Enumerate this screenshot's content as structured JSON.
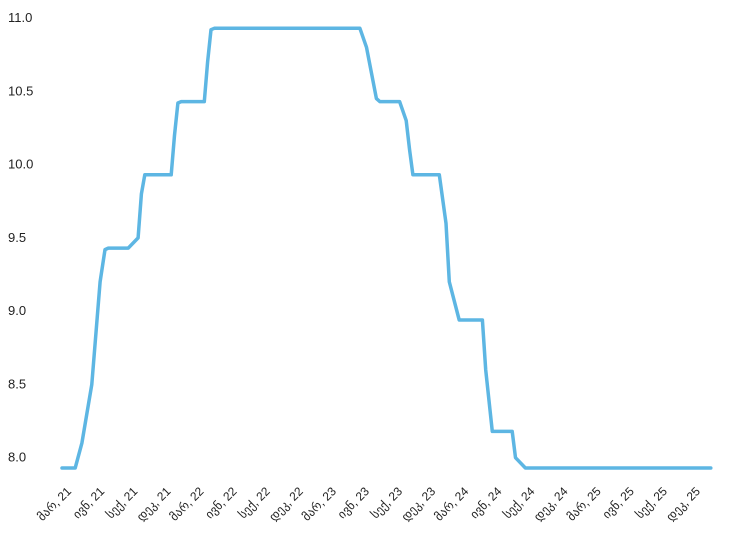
{
  "chart_data": {
    "type": "line",
    "title": "",
    "xlabel": "",
    "ylabel": "",
    "ylim": [
      7.93,
      11.0
    ],
    "yticks": [
      8.0,
      8.5,
      9.0,
      9.5,
      10.0,
      10.5,
      11.0
    ],
    "ytick_labels": [
      "8.0",
      "8.5",
      "9.0",
      "9.5",
      "10.0",
      "10.5",
      "11.0"
    ],
    "grid": false,
    "legend": "none",
    "line_color": "#5DB6E3",
    "categories": [
      "მარ, 21",
      "ივნ, 21",
      "სექ, 21",
      "დეკ, 21",
      "მარ, 22",
      "ივნ, 22",
      "სექ, 22",
      "დეკ, 22",
      "მარ, 23",
      "ივნ, 23",
      "სექ, 23",
      "დეკ, 23",
      "მარ, 24",
      "ივნ, 24",
      "სექ, 24",
      "დეკ, 24",
      "მარ, 25",
      "ივნ, 25",
      "სექ, 25",
      "დეკ, 25"
    ],
    "series": [
      {
        "name": "",
        "x": [
          0,
          0.4,
          0.6,
          0.9,
          1.15,
          1.3,
          1.4,
          1.5,
          1.6,
          1.9,
          2.0,
          2.3,
          2.4,
          2.5,
          2.6,
          2.9,
          3.0,
          3.3,
          3.4,
          3.5,
          3.6,
          3.9,
          4.0,
          4.3,
          4.4,
          4.5,
          4.6,
          5.0,
          6.0,
          7.0,
          8.0,
          8.3,
          8.4,
          8.6,
          8.7,
          9.0,
          9.2,
          9.5,
          9.6,
          9.8,
          10.0,
          10.2,
          10.4,
          10.5,
          10.6,
          10.8,
          11.0,
          11.2,
          11.4,
          11.6,
          11.7,
          12.0,
          12.2,
          12.4,
          12.5,
          12.7,
          12.8,
          13.0,
          13.2,
          13.3,
          13.5,
          13.6,
          13.7,
          14,
          15,
          16,
          17,
          18,
          19,
          19.6
        ],
        "values": [
          7.93,
          7.93,
          8.1,
          8.5,
          9.2,
          9.42,
          9.43,
          9.43,
          9.43,
          9.43,
          9.43,
          9.5,
          9.8,
          9.93,
          9.93,
          9.93,
          9.93,
          9.93,
          10.2,
          10.42,
          10.43,
          10.43,
          10.43,
          10.43,
          10.7,
          10.92,
          10.93,
          10.93,
          10.93,
          10.93,
          10.93,
          10.93,
          10.93,
          10.93,
          10.93,
          10.93,
          10.8,
          10.45,
          10.43,
          10.43,
          10.43,
          10.43,
          10.3,
          10.1,
          9.93,
          9.93,
          9.93,
          9.93,
          9.93,
          9.6,
          9.2,
          8.94,
          8.94,
          8.94,
          8.94,
          8.94,
          8.6,
          8.18,
          8.18,
          8.18,
          8.18,
          8.18,
          8.0,
          7.93,
          7.93,
          7.93,
          7.93,
          7.93,
          7.93,
          7.93
        ]
      }
    ]
  }
}
